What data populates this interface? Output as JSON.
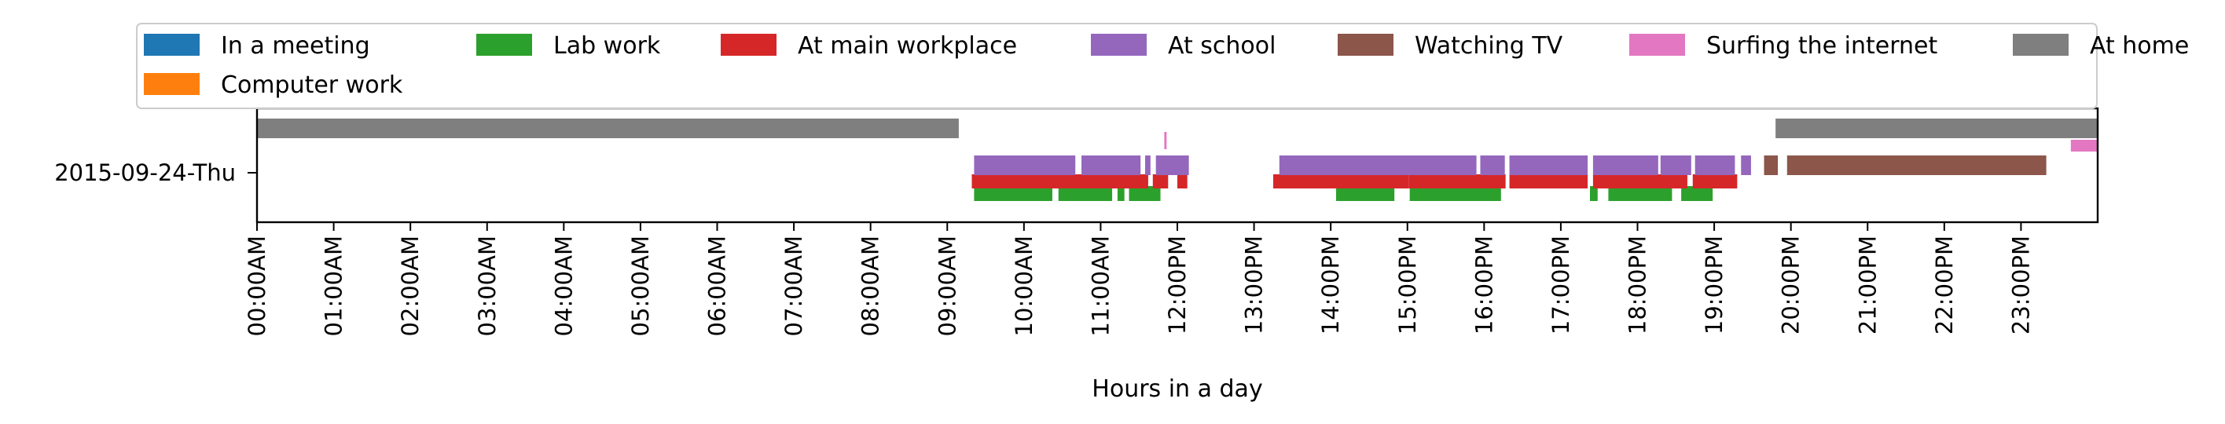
{
  "chart_data": {
    "type": "timeline",
    "xlabel": "Hours in a day",
    "ylabel": "",
    "xlim": [
      0,
      24
    ],
    "row_label": "2015-09-24-Thu",
    "x_ticks": [
      "00:00AM",
      "01:00AM",
      "02:00AM",
      "03:00AM",
      "04:00AM",
      "05:00AM",
      "06:00AM",
      "07:00AM",
      "08:00AM",
      "09:00AM",
      "10:00AM",
      "11:00AM",
      "12:00PM",
      "13:00PM",
      "14:00PM",
      "15:00PM",
      "16:00PM",
      "17:00PM",
      "18:00PM",
      "19:00PM",
      "20:00PM",
      "21:00PM",
      "22:00PM",
      "23:00PM"
    ],
    "legend_position": "top (above plot), 7 columns",
    "series": [
      {
        "name": "In a meeting",
        "color": "#1f77b4",
        "lane": 1,
        "intervals": []
      },
      {
        "name": "Computer work",
        "color": "#ff7f0e",
        "lane": 2,
        "intervals": []
      },
      {
        "name": "Lab work",
        "color": "#2ca02c",
        "lane": 1,
        "intervals": [
          [
            9.35,
            10.37
          ],
          [
            10.45,
            11.15
          ],
          [
            11.22,
            11.31
          ],
          [
            11.37,
            11.78
          ],
          [
            14.07,
            14.83
          ],
          [
            15.03,
            16.22
          ],
          [
            17.38,
            17.48
          ],
          [
            17.62,
            18.45
          ],
          [
            18.57,
            18.98
          ]
        ]
      },
      {
        "name": "At main workplace",
        "color": "#d62728",
        "lane": 2,
        "intervals": [
          [
            9.32,
            11.62
          ],
          [
            11.68,
            11.88
          ],
          [
            12.0,
            12.13
          ],
          [
            13.25,
            15.02
          ],
          [
            15.02,
            16.28
          ],
          [
            16.33,
            17.35
          ],
          [
            17.42,
            18.65
          ],
          [
            18.72,
            19.3
          ]
        ]
      },
      {
        "name": "At school",
        "color": "#9467bd",
        "lane": 3,
        "intervals": [
          [
            9.35,
            10.67
          ],
          [
            10.75,
            11.52
          ],
          [
            11.58,
            11.65
          ],
          [
            11.72,
            12.15
          ],
          [
            13.33,
            15.9
          ],
          [
            15.95,
            16.27
          ],
          [
            16.33,
            17.35
          ],
          [
            17.42,
            18.27
          ],
          [
            18.3,
            18.7
          ],
          [
            18.75,
            19.27
          ],
          [
            19.35,
            19.48
          ]
        ]
      },
      {
        "name": "Watching TV",
        "color": "#8c564b",
        "lane": 3,
        "intervals": [
          [
            19.65,
            19.83
          ],
          [
            19.95,
            23.33
          ]
        ]
      },
      {
        "name": "Surfing the internet",
        "color": "#e377c2",
        "lane": 4,
        "intervals": [
          [
            11.83,
            11.86
          ],
          [
            23.65,
            24.0
          ]
        ]
      },
      {
        "name": "At home",
        "color": "#7f7f7f",
        "lane": 5,
        "intervals": [
          [
            0.0,
            9.15
          ],
          [
            19.8,
            24.0
          ]
        ]
      }
    ]
  }
}
